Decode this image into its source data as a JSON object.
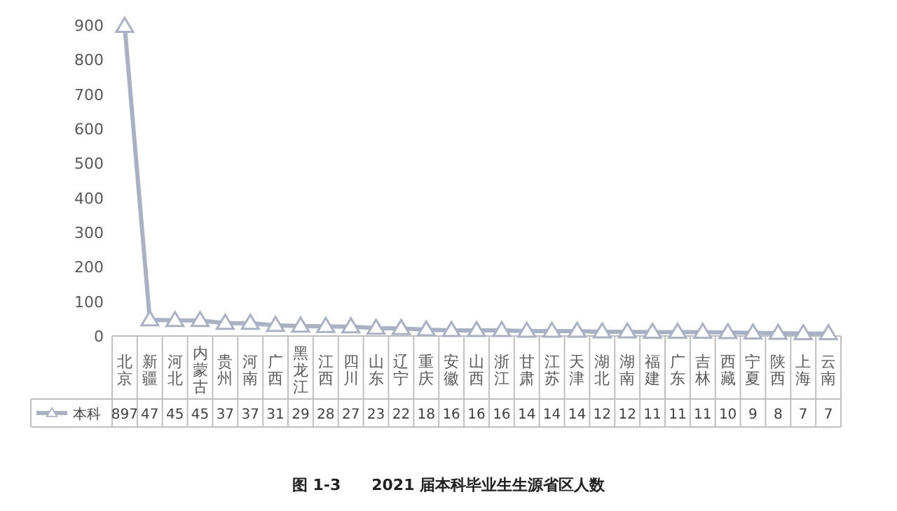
{
  "chart_data": {
    "type": "line",
    "title": "图 1-3　　2021 届本科毕业生生源省区人数",
    "categories": [
      "北京",
      "新疆",
      "河北",
      "内蒙古",
      "贵州",
      "河南",
      "广西",
      "黑龙江",
      "江西",
      "四川",
      "山东",
      "辽宁",
      "重庆",
      "安徽",
      "山西",
      "浙江",
      "甘肃",
      "江苏",
      "天津",
      "湖北",
      "湖南",
      "福建",
      "广东",
      "吉林",
      "西藏",
      "宁夏",
      "陕西",
      "上海",
      "云南"
    ],
    "series": [
      {
        "name": "本科",
        "color": "#a9b1c4",
        "values": [
          897,
          47,
          45,
          45,
          37,
          37,
          31,
          29,
          28,
          27,
          23,
          22,
          18,
          16,
          16,
          16,
          14,
          14,
          14,
          12,
          12,
          11,
          11,
          11,
          10,
          9,
          8,
          7,
          7
        ]
      }
    ],
    "ylim": [
      0,
      900
    ],
    "yticks": [
      0,
      100,
      200,
      300,
      400,
      500,
      600,
      700,
      800,
      900
    ],
    "data_labels": true,
    "legend": "bottom",
    "marker": "triangle",
    "line_style": "solid",
    "grid": false
  }
}
